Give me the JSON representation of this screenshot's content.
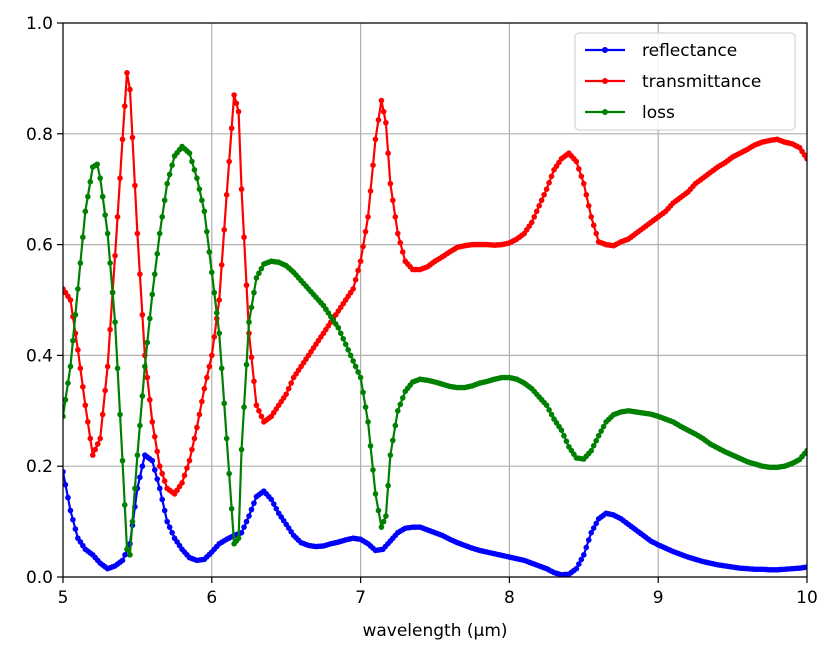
{
  "chart_data": {
    "type": "line",
    "title": "",
    "xlabel": "wavelength (μm)",
    "ylabel": "",
    "xlim": [
      5,
      10
    ],
    "ylim": [
      0,
      1
    ],
    "xticks": [
      5,
      6,
      7,
      8,
      9,
      10
    ],
    "yticks": [
      0.0,
      0.2,
      0.4,
      0.6,
      0.8,
      1.0
    ],
    "xtick_labels": [
      "5",
      "6",
      "7",
      "8",
      "9",
      "10"
    ],
    "ytick_labels": [
      "0.0",
      "0.2",
      "0.4",
      "0.6",
      "0.8",
      "1.0"
    ],
    "grid": true,
    "legend_position": "top-right",
    "series": [
      {
        "name": "reflectance",
        "color": "#0000ff",
        "points": [
          [
            5.0,
            0.19
          ],
          [
            5.05,
            0.12
          ],
          [
            5.1,
            0.07
          ],
          [
            5.15,
            0.05
          ],
          [
            5.2,
            0.04
          ],
          [
            5.25,
            0.025
          ],
          [
            5.3,
            0.015
          ],
          [
            5.35,
            0.02
          ],
          [
            5.4,
            0.03
          ],
          [
            5.45,
            0.06
          ],
          [
            5.5,
            0.16
          ],
          [
            5.55,
            0.22
          ],
          [
            5.6,
            0.21
          ],
          [
            5.65,
            0.16
          ],
          [
            5.7,
            0.1
          ],
          [
            5.75,
            0.07
          ],
          [
            5.8,
            0.05
          ],
          [
            5.85,
            0.035
          ],
          [
            5.9,
            0.03
          ],
          [
            5.95,
            0.032
          ],
          [
            6.0,
            0.045
          ],
          [
            6.05,
            0.06
          ],
          [
            6.1,
            0.068
          ],
          [
            6.15,
            0.075
          ],
          [
            6.2,
            0.08
          ],
          [
            6.25,
            0.11
          ],
          [
            6.3,
            0.145
          ],
          [
            6.35,
            0.155
          ],
          [
            6.4,
            0.14
          ],
          [
            6.45,
            0.115
          ],
          [
            6.5,
            0.095
          ],
          [
            6.55,
            0.075
          ],
          [
            6.6,
            0.062
          ],
          [
            6.65,
            0.057
          ],
          [
            6.7,
            0.055
          ],
          [
            6.75,
            0.056
          ],
          [
            6.8,
            0.06
          ],
          [
            6.85,
            0.063
          ],
          [
            6.9,
            0.067
          ],
          [
            6.95,
            0.07
          ],
          [
            7.0,
            0.068
          ],
          [
            7.05,
            0.06
          ],
          [
            7.1,
            0.048
          ],
          [
            7.15,
            0.05
          ],
          [
            7.2,
            0.065
          ],
          [
            7.25,
            0.08
          ],
          [
            7.3,
            0.088
          ],
          [
            7.35,
            0.09
          ],
          [
            7.4,
            0.09
          ],
          [
            7.45,
            0.085
          ],
          [
            7.5,
            0.08
          ],
          [
            7.55,
            0.075
          ],
          [
            7.6,
            0.068
          ],
          [
            7.65,
            0.062
          ],
          [
            7.7,
            0.057
          ],
          [
            7.75,
            0.052
          ],
          [
            7.8,
            0.048
          ],
          [
            7.85,
            0.045
          ],
          [
            7.9,
            0.042
          ],
          [
            7.95,
            0.039
          ],
          [
            8.0,
            0.036
          ],
          [
            8.05,
            0.033
          ],
          [
            8.1,
            0.03
          ],
          [
            8.15,
            0.025
          ],
          [
            8.2,
            0.02
          ],
          [
            8.25,
            0.015
          ],
          [
            8.3,
            0.008
          ],
          [
            8.35,
            0.004
          ],
          [
            8.4,
            0.005
          ],
          [
            8.45,
            0.015
          ],
          [
            8.5,
            0.04
          ],
          [
            8.55,
            0.08
          ],
          [
            8.6,
            0.105
          ],
          [
            8.65,
            0.115
          ],
          [
            8.7,
            0.112
          ],
          [
            8.75,
            0.105
          ],
          [
            8.8,
            0.095
          ],
          [
            8.85,
            0.085
          ],
          [
            8.9,
            0.075
          ],
          [
            8.95,
            0.065
          ],
          [
            9.0,
            0.058
          ],
          [
            9.05,
            0.052
          ],
          [
            9.1,
            0.046
          ],
          [
            9.15,
            0.041
          ],
          [
            9.2,
            0.036
          ],
          [
            9.25,
            0.032
          ],
          [
            9.3,
            0.028
          ],
          [
            9.35,
            0.025
          ],
          [
            9.4,
            0.022
          ],
          [
            9.45,
            0.02
          ],
          [
            9.5,
            0.018
          ],
          [
            9.55,
            0.016
          ],
          [
            9.6,
            0.015
          ],
          [
            9.65,
            0.014
          ],
          [
            9.7,
            0.014
          ],
          [
            9.75,
            0.013
          ],
          [
            9.8,
            0.013
          ],
          [
            9.85,
            0.014
          ],
          [
            9.9,
            0.015
          ],
          [
            9.95,
            0.016
          ],
          [
            10.0,
            0.018
          ]
        ]
      },
      {
        "name": "transmittance",
        "color": "#ff0000",
        "points": [
          [
            5.0,
            0.52
          ],
          [
            5.05,
            0.5
          ],
          [
            5.1,
            0.41
          ],
          [
            5.15,
            0.31
          ],
          [
            5.2,
            0.22
          ],
          [
            5.25,
            0.25
          ],
          [
            5.3,
            0.38
          ],
          [
            5.35,
            0.58
          ],
          [
            5.4,
            0.79
          ],
          [
            5.43,
            0.91
          ],
          [
            5.45,
            0.88
          ],
          [
            5.5,
            0.62
          ],
          [
            5.55,
            0.4
          ],
          [
            5.6,
            0.28
          ],
          [
            5.65,
            0.2
          ],
          [
            5.7,
            0.16
          ],
          [
            5.75,
            0.15
          ],
          [
            5.8,
            0.17
          ],
          [
            5.85,
            0.21
          ],
          [
            5.9,
            0.27
          ],
          [
            5.95,
            0.34
          ],
          [
            6.0,
            0.4
          ],
          [
            6.05,
            0.5
          ],
          [
            6.1,
            0.69
          ],
          [
            6.15,
            0.87
          ],
          [
            6.18,
            0.84
          ],
          [
            6.2,
            0.7
          ],
          [
            6.25,
            0.44
          ],
          [
            6.3,
            0.31
          ],
          [
            6.35,
            0.28
          ],
          [
            6.4,
            0.29
          ],
          [
            6.45,
            0.31
          ],
          [
            6.5,
            0.33
          ],
          [
            6.55,
            0.36
          ],
          [
            6.6,
            0.38
          ],
          [
            6.65,
            0.4
          ],
          [
            6.7,
            0.42
          ],
          [
            6.75,
            0.44
          ],
          [
            6.8,
            0.46
          ],
          [
            6.85,
            0.48
          ],
          [
            6.9,
            0.5
          ],
          [
            6.95,
            0.52
          ],
          [
            7.0,
            0.57
          ],
          [
            7.05,
            0.65
          ],
          [
            7.1,
            0.79
          ],
          [
            7.14,
            0.86
          ],
          [
            7.17,
            0.82
          ],
          [
            7.2,
            0.71
          ],
          [
            7.25,
            0.62
          ],
          [
            7.3,
            0.57
          ],
          [
            7.35,
            0.555
          ],
          [
            7.4,
            0.555
          ],
          [
            7.45,
            0.56
          ],
          [
            7.5,
            0.57
          ],
          [
            7.55,
            0.578
          ],
          [
            7.6,
            0.587
          ],
          [
            7.65,
            0.595
          ],
          [
            7.7,
            0.598
          ],
          [
            7.75,
            0.6
          ],
          [
            7.8,
            0.6
          ],
          [
            7.85,
            0.6
          ],
          [
            7.9,
            0.599
          ],
          [
            7.95,
            0.6
          ],
          [
            8.0,
            0.603
          ],
          [
            8.05,
            0.61
          ],
          [
            8.1,
            0.62
          ],
          [
            8.15,
            0.64
          ],
          [
            8.2,
            0.67
          ],
          [
            8.25,
            0.7
          ],
          [
            8.3,
            0.735
          ],
          [
            8.35,
            0.755
          ],
          [
            8.4,
            0.765
          ],
          [
            8.45,
            0.75
          ],
          [
            8.5,
            0.71
          ],
          [
            8.55,
            0.65
          ],
          [
            8.6,
            0.605
          ],
          [
            8.65,
            0.6
          ],
          [
            8.7,
            0.598
          ],
          [
            8.75,
            0.605
          ],
          [
            8.8,
            0.61
          ],
          [
            8.85,
            0.62
          ],
          [
            8.9,
            0.63
          ],
          [
            8.95,
            0.64
          ],
          [
            9.0,
            0.65
          ],
          [
            9.05,
            0.66
          ],
          [
            9.1,
            0.675
          ],
          [
            9.15,
            0.685
          ],
          [
            9.2,
            0.695
          ],
          [
            9.25,
            0.71
          ],
          [
            9.3,
            0.72
          ],
          [
            9.35,
            0.73
          ],
          [
            9.4,
            0.74
          ],
          [
            9.45,
            0.748
          ],
          [
            9.5,
            0.758
          ],
          [
            9.55,
            0.765
          ],
          [
            9.6,
            0.772
          ],
          [
            9.65,
            0.78
          ],
          [
            9.7,
            0.785
          ],
          [
            9.75,
            0.788
          ],
          [
            9.8,
            0.79
          ],
          [
            9.85,
            0.785
          ],
          [
            9.9,
            0.782
          ],
          [
            9.95,
            0.775
          ],
          [
            10.0,
            0.755
          ]
        ]
      },
      {
        "name": "loss",
        "color": "#008000",
        "points": [
          [
            5.0,
            0.29
          ],
          [
            5.05,
            0.38
          ],
          [
            5.1,
            0.52
          ],
          [
            5.15,
            0.66
          ],
          [
            5.2,
            0.74
          ],
          [
            5.23,
            0.745
          ],
          [
            5.25,
            0.72
          ],
          [
            5.3,
            0.62
          ],
          [
            5.35,
            0.46
          ],
          [
            5.4,
            0.21
          ],
          [
            5.43,
            0.05
          ],
          [
            5.45,
            0.04
          ],
          [
            5.5,
            0.22
          ],
          [
            5.55,
            0.38
          ],
          [
            5.6,
            0.51
          ],
          [
            5.65,
            0.62
          ],
          [
            5.7,
            0.71
          ],
          [
            5.75,
            0.76
          ],
          [
            5.8,
            0.777
          ],
          [
            5.85,
            0.765
          ],
          [
            5.9,
            0.72
          ],
          [
            5.95,
            0.66
          ],
          [
            6.0,
            0.55
          ],
          [
            6.05,
            0.44
          ],
          [
            6.1,
            0.25
          ],
          [
            6.15,
            0.06
          ],
          [
            6.18,
            0.07
          ],
          [
            6.2,
            0.23
          ],
          [
            6.25,
            0.46
          ],
          [
            6.3,
            0.54
          ],
          [
            6.35,
            0.565
          ],
          [
            6.4,
            0.57
          ],
          [
            6.45,
            0.568
          ],
          [
            6.5,
            0.562
          ],
          [
            6.55,
            0.55
          ],
          [
            6.6,
            0.535
          ],
          [
            6.65,
            0.52
          ],
          [
            6.7,
            0.505
          ],
          [
            6.75,
            0.49
          ],
          [
            6.8,
            0.47
          ],
          [
            6.85,
            0.45
          ],
          [
            6.9,
            0.42
          ],
          [
            6.95,
            0.39
          ],
          [
            7.0,
            0.36
          ],
          [
            7.05,
            0.28
          ],
          [
            7.1,
            0.15
          ],
          [
            7.14,
            0.09
          ],
          [
            7.17,
            0.11
          ],
          [
            7.2,
            0.22
          ],
          [
            7.25,
            0.3
          ],
          [
            7.3,
            0.335
          ],
          [
            7.35,
            0.352
          ],
          [
            7.4,
            0.357
          ],
          [
            7.45,
            0.355
          ],
          [
            7.5,
            0.352
          ],
          [
            7.55,
            0.348
          ],
          [
            7.6,
            0.344
          ],
          [
            7.65,
            0.342
          ],
          [
            7.7,
            0.342
          ],
          [
            7.75,
            0.345
          ],
          [
            7.8,
            0.35
          ],
          [
            7.85,
            0.353
          ],
          [
            7.9,
            0.357
          ],
          [
            7.95,
            0.36
          ],
          [
            8.0,
            0.36
          ],
          [
            8.05,
            0.357
          ],
          [
            8.1,
            0.35
          ],
          [
            8.15,
            0.34
          ],
          [
            8.2,
            0.325
          ],
          [
            8.25,
            0.31
          ],
          [
            8.3,
            0.285
          ],
          [
            8.35,
            0.265
          ],
          [
            8.4,
            0.235
          ],
          [
            8.45,
            0.215
          ],
          [
            8.5,
            0.213
          ],
          [
            8.55,
            0.228
          ],
          [
            8.6,
            0.255
          ],
          [
            8.65,
            0.28
          ],
          [
            8.7,
            0.293
          ],
          [
            8.75,
            0.298
          ],
          [
            8.8,
            0.3
          ],
          [
            8.85,
            0.298
          ],
          [
            8.9,
            0.296
          ],
          [
            8.95,
            0.294
          ],
          [
            9.0,
            0.29
          ],
          [
            9.05,
            0.285
          ],
          [
            9.1,
            0.28
          ],
          [
            9.15,
            0.272
          ],
          [
            9.2,
            0.265
          ],
          [
            9.25,
            0.258
          ],
          [
            9.3,
            0.25
          ],
          [
            9.35,
            0.24
          ],
          [
            9.4,
            0.233
          ],
          [
            9.45,
            0.226
          ],
          [
            9.5,
            0.22
          ],
          [
            9.55,
            0.214
          ],
          [
            9.6,
            0.208
          ],
          [
            9.65,
            0.204
          ],
          [
            9.7,
            0.2
          ],
          [
            9.75,
            0.198
          ],
          [
            9.8,
            0.198
          ],
          [
            9.85,
            0.2
          ],
          [
            9.9,
            0.205
          ],
          [
            9.95,
            0.212
          ],
          [
            10.0,
            0.228
          ]
        ]
      }
    ]
  }
}
